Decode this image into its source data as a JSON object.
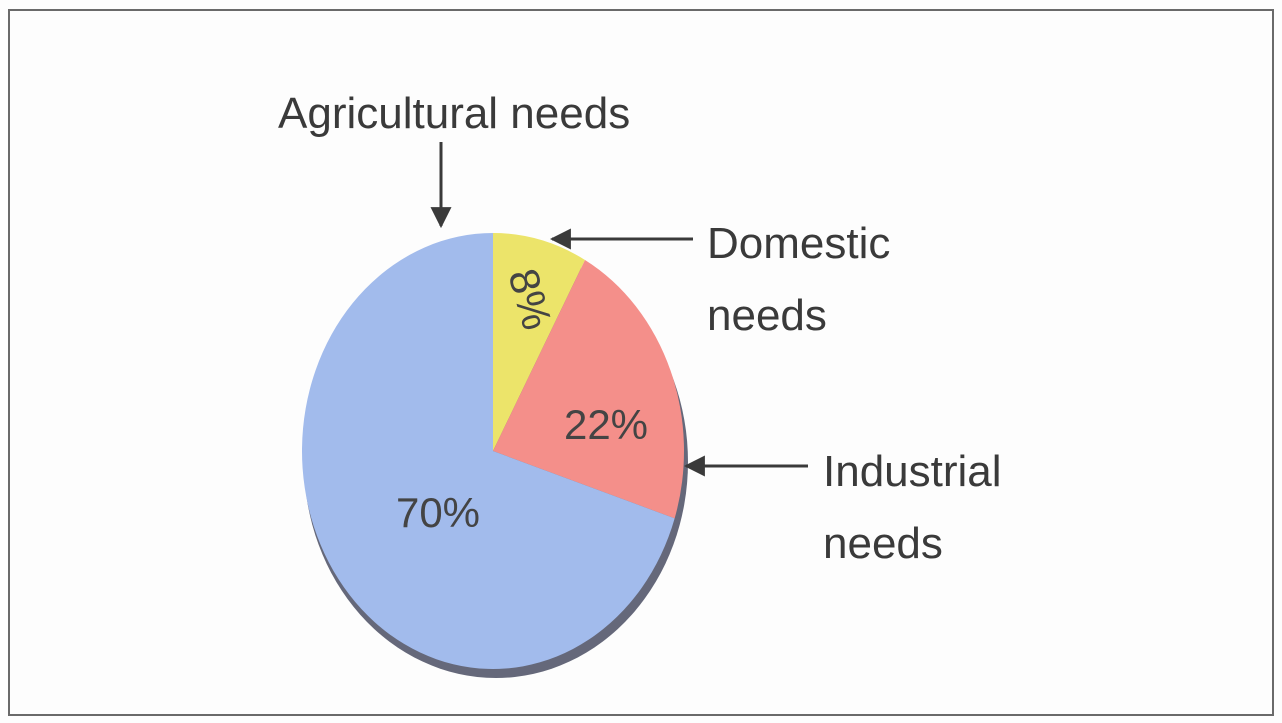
{
  "chart_data": {
    "type": "pie",
    "title": "",
    "slices": [
      {
        "key": "agricultural",
        "label_lines": [
          "Agricultural needs"
        ],
        "value": 70,
        "value_label": "70%",
        "color": "#a2bbec"
      },
      {
        "key": "industrial",
        "label_lines": [
          "Industrial",
          "needs"
        ],
        "value": 22,
        "value_label": "22%",
        "color": "#f48f8a"
      },
      {
        "key": "domestic",
        "label_lines": [
          "Domestic",
          "needs"
        ],
        "value": 8,
        "value_label": "8%",
        "color": "#ece46a"
      }
    ],
    "legend": "callout-labels-with-arrows",
    "grid": false
  }
}
